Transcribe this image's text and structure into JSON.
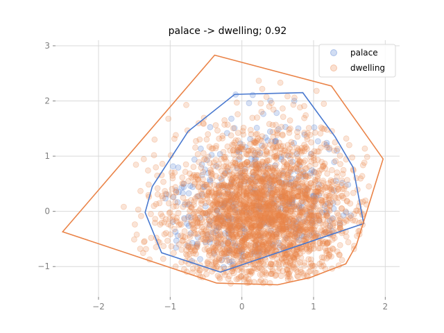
{
  "chart_data": {
    "type": "scatter",
    "title": "palace -> dwelling; 0.92",
    "xlabel": "",
    "ylabel": "",
    "xlim": [
      -2.6,
      2.2
    ],
    "ylim": [
      -1.55,
      3.1
    ],
    "xticks": [
      -2,
      -1,
      0,
      1,
      2
    ],
    "yticks": [
      -1,
      0,
      1,
      2,
      3
    ],
    "xtick_labels": [
      "−2",
      "−1",
      "0",
      "1",
      "2"
    ],
    "ytick_labels": [
      "−1",
      "0",
      "1",
      "2",
      "3"
    ],
    "grid": true,
    "legend_position": "top-right",
    "series": [
      {
        "name": "palace",
        "color": "#4878cf",
        "point_count": 350,
        "hull": [
          [
            -0.3,
            -1.1
          ],
          [
            1.7,
            -0.22
          ],
          [
            1.55,
            0.8
          ],
          [
            1.3,
            1.35
          ],
          [
            0.85,
            2.15
          ],
          [
            -0.1,
            2.12
          ],
          [
            -0.75,
            1.45
          ],
          [
            -1.25,
            0.45
          ],
          [
            -1.35,
            -0.02
          ],
          [
            -1.12,
            -0.75
          ]
        ]
      },
      {
        "name": "dwelling",
        "color": "#ea8347",
        "point_count": 2600,
        "hull": [
          [
            -0.35,
            -1.3
          ],
          [
            0.5,
            -1.33
          ],
          [
            0.95,
            -1.2
          ],
          [
            1.45,
            -0.95
          ],
          [
            1.6,
            -0.6
          ],
          [
            1.97,
            0.95
          ],
          [
            1.25,
            2.27
          ],
          [
            -0.38,
            2.83
          ],
          [
            -2.5,
            -0.37
          ]
        ]
      }
    ]
  }
}
